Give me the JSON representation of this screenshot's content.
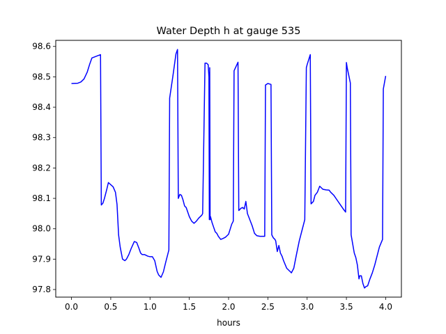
{
  "chart_data": {
    "type": "line",
    "title": "Water Depth h at gauge 535",
    "xlabel": "hours",
    "ylabel": "",
    "xlim": [
      -0.2,
      4.2
    ],
    "ylim": [
      97.775,
      98.62
    ],
    "xticks": [
      0.0,
      0.5,
      1.0,
      1.5,
      2.0,
      2.5,
      3.0,
      3.5,
      4.0
    ],
    "xtick_labels": [
      "0.0",
      "0.5",
      "1.0",
      "1.5",
      "2.0",
      "2.5",
      "3.0",
      "3.5",
      "4.0"
    ],
    "yticks": [
      97.8,
      97.9,
      98.0,
      98.1,
      98.2,
      98.3,
      98.4,
      98.5,
      98.6
    ],
    "ytick_labels": [
      "97.8",
      "97.9",
      "98.0",
      "98.1",
      "98.2",
      "98.3",
      "98.4",
      "98.5",
      "98.6"
    ],
    "grid": false,
    "legend": "none",
    "line_color": "#0000ff",
    "series": [
      {
        "x": [
          0.0,
          0.08,
          0.12,
          0.16,
          0.2,
          0.23,
          0.26,
          0.3,
          0.34,
          0.37,
          0.38,
          0.4,
          0.42,
          0.45,
          0.47,
          0.5,
          0.53,
          0.56,
          0.58,
          0.6,
          0.62,
          0.65,
          0.68,
          0.7,
          0.73,
          0.76,
          0.8,
          0.83,
          0.86,
          0.88,
          0.9,
          0.93,
          0.97,
          1.0,
          1.03,
          1.06,
          1.09,
          1.11,
          1.14,
          1.17,
          1.2,
          1.24,
          1.25,
          1.29,
          1.33,
          1.35,
          1.36,
          1.38,
          1.4,
          1.42,
          1.44,
          1.46,
          1.5,
          1.53,
          1.56,
          1.59,
          1.62,
          1.64,
          1.66,
          1.67,
          1.7,
          1.72,
          1.74,
          1.75,
          1.755,
          1.76,
          1.765,
          1.77,
          1.79,
          1.81,
          1.83,
          1.85,
          1.87,
          1.9,
          1.93,
          1.96,
          2.0,
          2.04,
          2.06,
          2.07,
          2.12,
          2.13,
          2.16,
          2.18,
          2.2,
          2.22,
          2.24,
          2.27,
          2.3,
          2.33,
          2.36,
          2.4,
          2.44,
          2.46,
          2.47,
          2.5,
          2.54,
          2.55,
          2.57,
          2.59,
          2.6,
          2.62,
          2.64,
          2.66,
          2.68,
          2.7,
          2.74,
          2.78,
          2.8,
          2.83,
          2.86,
          2.9,
          2.94,
          2.97,
          2.99,
          3.0,
          3.04,
          3.05,
          3.08,
          3.1,
          3.13,
          3.16,
          3.2,
          3.24,
          3.28,
          3.3,
          3.34,
          3.38,
          3.42,
          3.46,
          3.49,
          3.5,
          3.51,
          3.55,
          3.56,
          3.58,
          3.6,
          3.62,
          3.64,
          3.66,
          3.67,
          3.69,
          3.71,
          3.73,
          3.75,
          3.77,
          3.8,
          3.83,
          3.86,
          3.89,
          3.92,
          3.96,
          3.97,
          4.0
        ],
        "y": [
          98.478,
          98.479,
          98.483,
          98.493,
          98.515,
          98.54,
          98.562,
          98.566,
          98.57,
          98.573,
          98.078,
          98.084,
          98.1,
          98.13,
          98.152,
          98.145,
          98.138,
          98.12,
          98.08,
          97.98,
          97.94,
          97.9,
          97.895,
          97.9,
          97.915,
          97.935,
          97.958,
          97.955,
          97.935,
          97.92,
          97.915,
          97.915,
          97.91,
          97.908,
          97.908,
          97.895,
          97.86,
          97.848,
          97.84,
          97.858,
          97.89,
          97.93,
          98.43,
          98.5,
          98.575,
          98.59,
          98.1,
          98.113,
          98.11,
          98.095,
          98.075,
          98.07,
          98.04,
          98.025,
          98.018,
          98.025,
          98.035,
          98.04,
          98.045,
          98.05,
          98.545,
          98.545,
          98.54,
          98.5,
          98.03,
          98.53,
          98.03,
          98.04,
          98.02,
          98.005,
          97.99,
          97.985,
          97.975,
          97.965,
          97.968,
          97.972,
          97.982,
          98.015,
          98.025,
          98.52,
          98.548,
          98.06,
          98.068,
          98.07,
          98.065,
          98.09,
          98.05,
          98.03,
          98.01,
          97.985,
          97.977,
          97.975,
          97.975,
          97.975,
          98.473,
          98.478,
          98.475,
          97.98,
          97.97,
          97.965,
          97.96,
          97.925,
          97.945,
          97.92,
          97.91,
          97.895,
          97.87,
          97.86,
          97.855,
          97.87,
          97.91,
          97.96,
          98.0,
          98.03,
          98.53,
          98.54,
          98.573,
          98.082,
          98.09,
          98.11,
          98.12,
          98.14,
          98.13,
          98.128,
          98.127,
          98.12,
          98.11,
          98.095,
          98.08,
          98.065,
          98.055,
          98.547,
          98.53,
          98.48,
          97.98,
          97.95,
          97.92,
          97.905,
          97.88,
          97.835,
          97.845,
          97.845,
          97.82,
          97.805,
          97.81,
          97.812,
          97.835,
          97.855,
          97.88,
          97.91,
          97.94,
          97.965,
          98.46,
          98.503
        ]
      }
    ]
  }
}
